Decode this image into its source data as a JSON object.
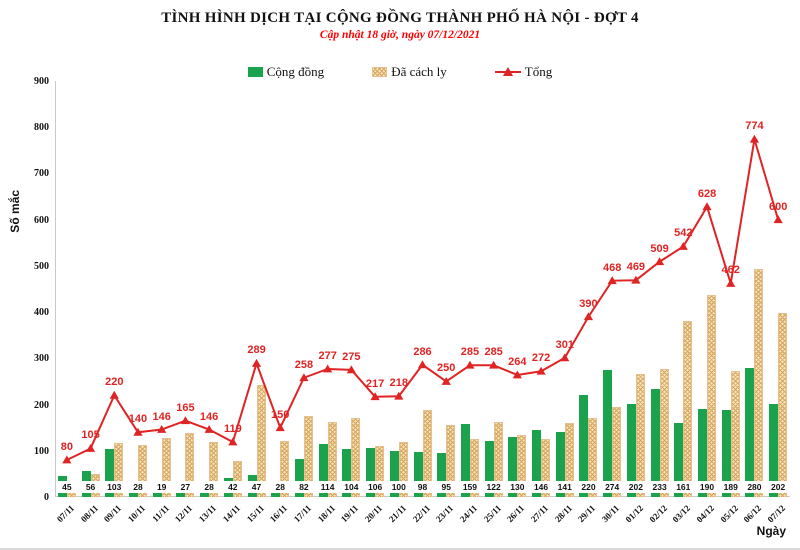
{
  "title": "TÌNH HÌNH DỊCH TẠI CỘNG ĐỒNG THÀNH PHỐ HÀ NỘI - ĐỢT 4",
  "subtitle": "Cập nhật 18 giờ, ngày 07/12/2021",
  "colors": {
    "community_green": "#1aa24c",
    "quarantine_fill": "#f8e3bb",
    "quarantine_hatch": "#d6a65c",
    "quarantine_border": "#e3c191",
    "total_red": "#e02424",
    "subtitle_red": "#ff0000",
    "axis_gray": "#c9c9c9"
  },
  "legend": [
    {
      "label": "Cộng đồng",
      "marker": "green-square"
    },
    {
      "label": "Đã cách ly",
      "marker": "tan-hatched-square"
    },
    {
      "label": "Tổng",
      "marker": "red-line-triangle"
    }
  ],
  "chart_data": {
    "type": "bar",
    "title": "TÌNH HÌNH DỊCH TẠI CỘNG ĐỒNG THÀNH PHỐ HÀ NỘI - ĐỢT 4",
    "subtitle": "Cập nhật 18 giờ, ngày 07/12/2021",
    "xlabel": "Ngày",
    "ylabel": "Số mắc",
    "ylim": [
      0,
      900
    ],
    "ytick_interval": 100,
    "grid": false,
    "legend_position": "top",
    "categories": [
      "07/11",
      "08/11",
      "09/11",
      "10/11",
      "11/11",
      "12/11",
      "13/11",
      "14/11",
      "15/11",
      "16/11",
      "17/11",
      "18/11",
      "19/11",
      "20/11",
      "21/11",
      "22/11",
      "23/11",
      "24/11",
      "25/11",
      "26/11",
      "27/11",
      "28/11",
      "29/11",
      "30/11",
      "01/12",
      "02/12",
      "03/12",
      "04/12",
      "05/12",
      "06/12",
      "07/12"
    ],
    "series": [
      {
        "name": "Cộng đồng",
        "type": "bar",
        "labeled": true,
        "values": [
          45,
          56,
          103,
          28,
          19,
          27,
          28,
          42,
          47,
          28,
          82,
          114,
          104,
          106,
          100,
          98,
          95,
          159,
          122,
          130,
          146,
          141,
          220,
          274,
          202,
          233,
          161,
          190,
          189,
          280,
          202
        ]
      },
      {
        "name": "Đã cách ly",
        "type": "bar",
        "labeled": false,
        "values": [
          35,
          49,
          117,
          112,
          127,
          138,
          118,
          77,
          242,
          122,
          176,
          163,
          171,
          111,
          118,
          188,
          155,
          126,
          163,
          134,
          126,
          160,
          170,
          194,
          267,
          276,
          381,
          438,
          273,
          494,
          398
        ]
      },
      {
        "name": "Tổng",
        "type": "line",
        "labeled": true,
        "values": [
          80,
          105,
          220,
          140,
          146,
          165,
          146,
          119,
          289,
          150,
          258,
          277,
          275,
          217,
          218,
          286,
          250,
          285,
          285,
          264,
          272,
          301,
          390,
          468,
          469,
          509,
          542,
          628,
          462,
          774,
          600
        ]
      }
    ]
  }
}
